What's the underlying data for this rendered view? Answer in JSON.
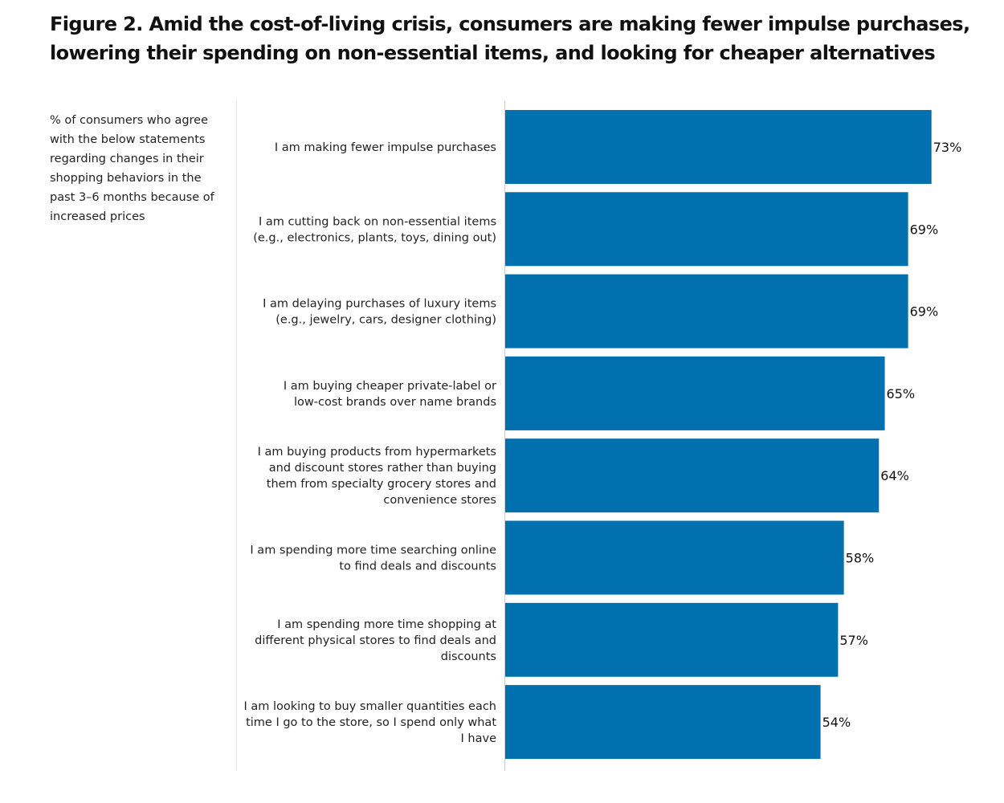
{
  "chart_data": {
    "type": "bar",
    "orientation": "horizontal",
    "title": "Figure 2. Amid the cost-of-living crisis, consumers are making fewer impulse purchases, lowering their spending on non-essential items, and looking for cheaper alternatives",
    "subtitle": "% of consumers who agree with the below statements regarding changes in their shopping behaviors in the past 3–6 months because of increased prices",
    "categories": [
      [
        "I am making fewer impulse purchases"
      ],
      [
        "I am cutting back on non-essential items",
        "(e.g., electronics, plants, toys, dining out)"
      ],
      [
        "I am delaying purchases of luxury items",
        "(e.g., jewelry, cars, designer clothing)"
      ],
      [
        "I am buying cheaper private-label or",
        "low-cost brands over name brands"
      ],
      [
        "I am buying products from hypermarkets",
        "and discount stores rather than buying",
        "them from specialty grocery stores and",
        "convenience stores"
      ],
      [
        "I am spending more time searching online",
        "to find deals and discounts"
      ],
      [
        "I am spending more time shopping at",
        "different physical stores to find deals and",
        "discounts"
      ],
      [
        "I am looking to buy smaller quantities each",
        "time I go to the store, so I spend only what",
        "I have"
      ]
    ],
    "values": [
      73,
      69,
      69,
      65,
      64,
      58,
      57,
      54
    ],
    "value_labels": [
      "73%",
      "69%",
      "69%",
      "65%",
      "64%",
      "58%",
      "57%",
      "54%"
    ],
    "xlim": [
      0,
      100
    ],
    "bar_color": "#0070AF",
    "grid": false,
    "legend": "none"
  }
}
